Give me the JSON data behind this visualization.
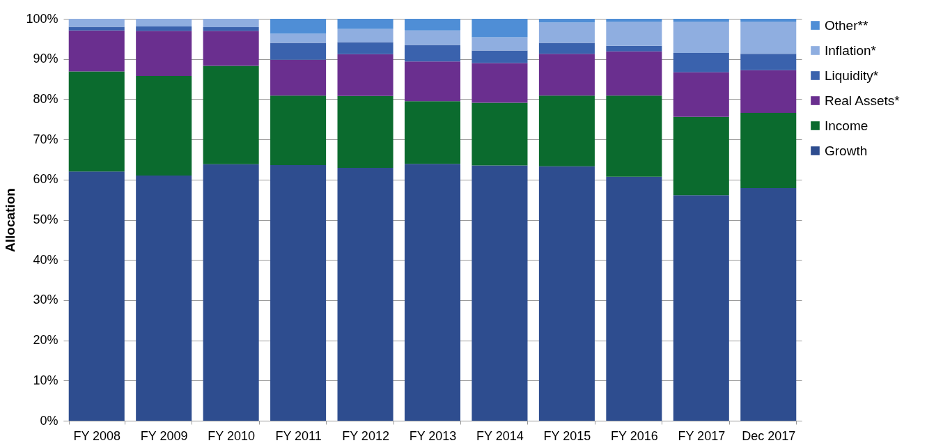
{
  "chart_data": {
    "type": "bar",
    "stacked": true,
    "ylabel": "Allocation",
    "categories": [
      "FY 2008",
      "FY 2009",
      "FY 2010",
      "FY 2011",
      "FY 2012",
      "FY 2013",
      "FY 2014",
      "FY 2015",
      "FY 2016",
      "FY 2017",
      "Dec 2017"
    ],
    "series": [
      {
        "name": "Growth",
        "color": "#2e4d8f",
        "values": [
          62.0,
          61.0,
          63.8,
          63.6,
          62.9,
          63.9,
          63.5,
          63.3,
          60.7,
          56.1,
          57.9
        ]
      },
      {
        "name": "Income",
        "color": "#0b6b2e",
        "values": [
          24.9,
          24.8,
          24.5,
          17.3,
          17.9,
          15.6,
          15.6,
          17.6,
          20.2,
          19.5,
          18.7
        ]
      },
      {
        "name": "Real Assets*",
        "color": "#6a2f8f",
        "values": [
          10.2,
          11.2,
          8.7,
          8.9,
          10.4,
          9.9,
          9.9,
          10.4,
          11.0,
          11.1,
          10.6
        ]
      },
      {
        "name": "Liquidity*",
        "color": "#3a62ad",
        "values": [
          0.9,
          1.1,
          0.9,
          4.2,
          3.0,
          4.1,
          3.1,
          2.7,
          1.4,
          4.8,
          4.1
        ]
      },
      {
        "name": "Inflation*",
        "color": "#8faee0",
        "values": [
          2.0,
          1.9,
          2.1,
          2.3,
          3.3,
          3.6,
          3.3,
          5.1,
          6.0,
          7.8,
          8.0
        ]
      },
      {
        "name": "Other**",
        "color": "#4f8ed6",
        "values": [
          null,
          null,
          null,
          3.7,
          2.5,
          2.9,
          4.6,
          0.9,
          0.7,
          0.7,
          0.7
        ]
      }
    ],
    "ylim": [
      0,
      100
    ],
    "yticks": [
      {
        "value": 0,
        "label": "0%"
      },
      {
        "value": 10,
        "label": "10%"
      },
      {
        "value": 20,
        "label": "20%"
      },
      {
        "value": 30,
        "label": "30%"
      },
      {
        "value": 40,
        "label": "40%"
      },
      {
        "value": 50,
        "label": "50%"
      },
      {
        "value": 60,
        "label": "60%"
      },
      {
        "value": 70,
        "label": "70%"
      },
      {
        "value": 80,
        "label": "80%"
      },
      {
        "value": 90,
        "label": "90%"
      },
      {
        "value": 100,
        "label": "100%"
      }
    ],
    "grid": "y",
    "legend": "top right"
  }
}
